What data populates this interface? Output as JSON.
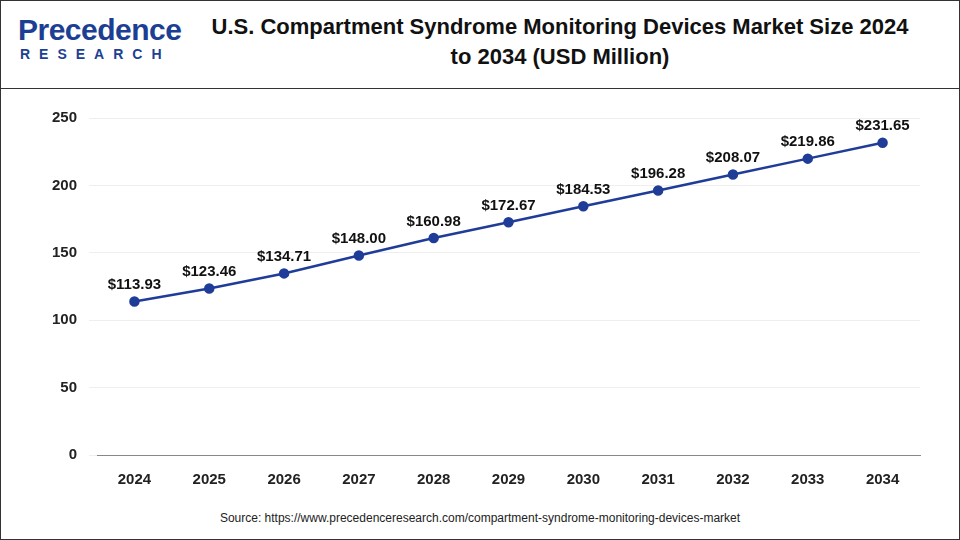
{
  "logo": {
    "name": "Precedence",
    "sub": "RESEARCH"
  },
  "source": "Source: https://www.precedenceresearch.com/compartment-syndrome-monitoring-devices-market",
  "chart_data": {
    "type": "line",
    "title": "U.S. Compartment Syndrome Monitoring Devices Market Size 2024 to 2034 (USD Million)",
    "categories": [
      "2024",
      "2025",
      "2026",
      "2027",
      "2028",
      "2029",
      "2030",
      "2031",
      "2032",
      "2033",
      "2034"
    ],
    "values": [
      113.93,
      123.46,
      134.71,
      148.0,
      160.98,
      172.67,
      184.53,
      196.28,
      208.07,
      219.86,
      231.65
    ],
    "value_labels": [
      "$113.93",
      "$123.46",
      "$134.71",
      "$148.00",
      "$160.98",
      "$172.67",
      "$184.53",
      "$196.28",
      "$208.07",
      "$219.86",
      "$231.65"
    ],
    "color": "#1f3c99",
    "marker": "circle",
    "ylim": [
      0,
      250
    ],
    "yticks": [
      0,
      50,
      100,
      150,
      200,
      250
    ],
    "grid": true,
    "data_labels": true
  }
}
